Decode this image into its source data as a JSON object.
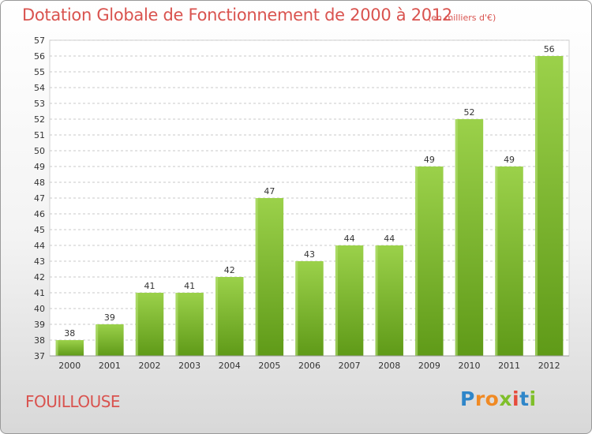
{
  "header": {
    "title": "Dotation Globale de Fonctionnement de 2000 à 2012",
    "unit_note": "(en milliers d'€)"
  },
  "footer": {
    "commune": "FOUILLOUSE",
    "logo_text": "Proxiti"
  },
  "colors": {
    "title": "#d9534f",
    "bar_light": "#9bd14a",
    "bar_dark": "#5f9a18",
    "grid": "#c8c8c8"
  },
  "chart_data": {
    "type": "bar",
    "title": "Dotation Globale de Fonctionnement de 2000 à 2012",
    "subtitle": "(en milliers d'€)",
    "xlabel": "",
    "ylabel": "",
    "categories": [
      "2000",
      "2001",
      "2002",
      "2003",
      "2004",
      "2005",
      "2006",
      "2007",
      "2008",
      "2009",
      "2010",
      "2011",
      "2012"
    ],
    "values": [
      38,
      39,
      41,
      41,
      42,
      47,
      43,
      44,
      44,
      49,
      52,
      49,
      56
    ],
    "ylim": [
      37,
      57
    ],
    "yticks": [
      37,
      38,
      39,
      40,
      41,
      42,
      43,
      44,
      45,
      46,
      47,
      48,
      49,
      50,
      51,
      52,
      53,
      54,
      55,
      56,
      57
    ],
    "grid": true,
    "legend": "none"
  }
}
